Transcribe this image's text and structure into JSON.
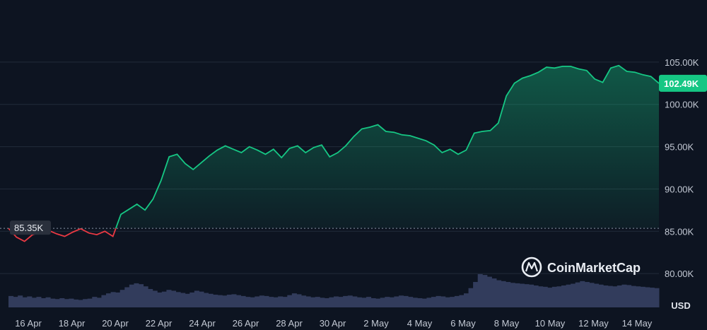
{
  "chart_data": {
    "type": "area",
    "currency_label": "USD",
    "brand": "CoinMarketCap",
    "baseline": {
      "value": 85350,
      "label": "85.35K"
    },
    "current": {
      "value": 102490,
      "label": "102.49K"
    },
    "ylim": [
      76000,
      109000
    ],
    "y_ticks": [
      {
        "value": 80000,
        "label": "80.00K"
      },
      {
        "value": 85000,
        "label": "85.00K"
      },
      {
        "value": 90000,
        "label": "90.00K"
      },
      {
        "value": 95000,
        "label": "95.00K"
      },
      {
        "value": 100000,
        "label": "100.00K"
      },
      {
        "value": 105000,
        "label": "105.00K"
      }
    ],
    "x_ticks": [
      "16 Apr",
      "18 Apr",
      "20 Apr",
      "22 Apr",
      "24 Apr",
      "26 Apr",
      "28 Apr",
      "30 Apr",
      "2 May",
      "4 May",
      "6 May",
      "8 May",
      "10 May",
      "12 May",
      "14 May"
    ],
    "grid": true,
    "colors": {
      "up": "#16c784",
      "down": "#ea3943",
      "background": "#0d1421",
      "grid": "#222b3a",
      "volume": "#323c5c"
    },
    "series": [
      {
        "values": [
          [
            0,
            85350
          ],
          [
            0.5,
            84300
          ],
          [
            1,
            83800
          ],
          [
            1.5,
            84600
          ],
          [
            2,
            84900
          ],
          [
            2.5,
            85100
          ],
          [
            3,
            84700
          ],
          [
            3.5,
            84400
          ],
          [
            4,
            84900
          ],
          [
            4.5,
            85300
          ],
          [
            5,
            84800
          ],
          [
            5.5,
            84600
          ],
          [
            6,
            85000
          ],
          [
            6.5,
            84400
          ],
          [
            7,
            87000
          ],
          [
            7.5,
            87600
          ],
          [
            8,
            88200
          ],
          [
            8.5,
            87500
          ],
          [
            9,
            88800
          ],
          [
            9.5,
            91000
          ],
          [
            10,
            93800
          ],
          [
            10.5,
            94100
          ],
          [
            11,
            93000
          ],
          [
            11.5,
            92300
          ],
          [
            12,
            93100
          ],
          [
            12.5,
            93900
          ],
          [
            13,
            94600
          ],
          [
            13.5,
            95100
          ],
          [
            14,
            94700
          ],
          [
            14.5,
            94300
          ],
          [
            15,
            95000
          ],
          [
            15.5,
            94600
          ],
          [
            16,
            94100
          ],
          [
            16.5,
            94700
          ],
          [
            17,
            93700
          ],
          [
            17.5,
            94800
          ],
          [
            18,
            95100
          ],
          [
            18.5,
            94300
          ],
          [
            19,
            94900
          ],
          [
            19.5,
            95200
          ],
          [
            20,
            93800
          ],
          [
            20.5,
            94300
          ],
          [
            21,
            95100
          ],
          [
            21.5,
            96200
          ],
          [
            22,
            97100
          ],
          [
            22.5,
            97300
          ],
          [
            23,
            97600
          ],
          [
            23.5,
            96800
          ],
          [
            24,
            96700
          ],
          [
            24.5,
            96400
          ],
          [
            25,
            96300
          ],
          [
            25.5,
            96000
          ],
          [
            26,
            95700
          ],
          [
            26.5,
            95200
          ],
          [
            27,
            94300
          ],
          [
            27.5,
            94700
          ],
          [
            28,
            94100
          ],
          [
            28.5,
            94600
          ],
          [
            29,
            96600
          ],
          [
            29.5,
            96800
          ],
          [
            30,
            96900
          ],
          [
            30.5,
            97800
          ],
          [
            31,
            101000
          ],
          [
            31.5,
            102500
          ],
          [
            32,
            103100
          ],
          [
            32.5,
            103400
          ],
          [
            33,
            103800
          ],
          [
            33.5,
            104400
          ],
          [
            34,
            104300
          ],
          [
            34.5,
            104500
          ],
          [
            35,
            104500
          ],
          [
            35.5,
            104200
          ],
          [
            36,
            104000
          ],
          [
            36.5,
            103000
          ],
          [
            37,
            102600
          ],
          [
            37.5,
            104300
          ],
          [
            38,
            104600
          ],
          [
            38.5,
            103900
          ],
          [
            39,
            103800
          ],
          [
            39.5,
            103500
          ],
          [
            40,
            103300
          ],
          [
            40.5,
            102490
          ]
        ]
      }
    ],
    "volume": [
      0.26,
      0.24,
      0.27,
      0.23,
      0.25,
      0.22,
      0.24,
      0.21,
      0.23,
      0.2,
      0.19,
      0.21,
      0.19,
      0.2,
      0.18,
      0.17,
      0.19,
      0.2,
      0.24,
      0.22,
      0.28,
      0.32,
      0.35,
      0.34,
      0.4,
      0.46,
      0.52,
      0.55,
      0.53,
      0.48,
      0.42,
      0.38,
      0.34,
      0.36,
      0.4,
      0.38,
      0.35,
      0.33,
      0.31,
      0.34,
      0.38,
      0.36,
      0.33,
      0.31,
      0.29,
      0.28,
      0.27,
      0.29,
      0.3,
      0.28,
      0.26,
      0.24,
      0.23,
      0.25,
      0.27,
      0.26,
      0.24,
      0.23,
      0.25,
      0.24,
      0.28,
      0.32,
      0.3,
      0.27,
      0.25,
      0.23,
      0.24,
      0.22,
      0.21,
      0.23,
      0.25,
      0.24,
      0.26,
      0.27,
      0.25,
      0.23,
      0.22,
      0.24,
      0.21,
      0.2,
      0.22,
      0.24,
      0.23,
      0.25,
      0.27,
      0.26,
      0.24,
      0.22,
      0.21,
      0.2,
      0.22,
      0.24,
      0.26,
      0.25,
      0.23,
      0.24,
      0.26,
      0.28,
      0.32,
      0.44,
      0.58,
      0.76,
      0.74,
      0.7,
      0.66,
      0.62,
      0.6,
      0.58,
      0.56,
      0.55,
      0.54,
      0.53,
      0.52,
      0.5,
      0.48,
      0.47,
      0.45,
      0.47,
      0.48,
      0.5,
      0.52,
      0.54,
      0.57,
      0.6,
      0.58,
      0.56,
      0.54,
      0.52,
      0.5,
      0.49,
      0.48,
      0.5,
      0.52,
      0.51,
      0.49,
      0.48,
      0.47,
      0.46,
      0.45,
      0.44
    ]
  }
}
